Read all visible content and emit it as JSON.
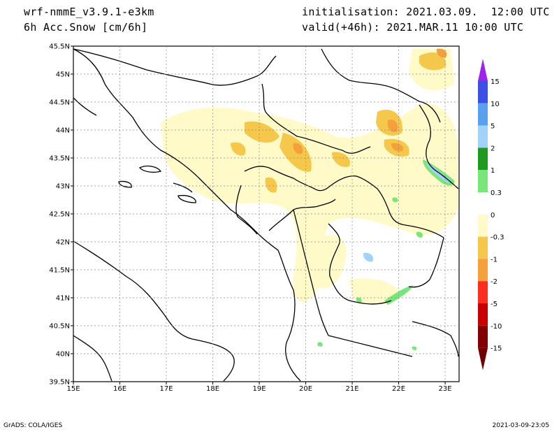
{
  "header": {
    "model": "wrf-nmmE_v3.9.1-e3km",
    "variable": "6h Acc.Snow [cm/6h]",
    "init": "initialisation: 2021.03.09.  12:00 UTC",
    "valid": "valid(+46h): 2021.MAR.11 10:00 UTC"
  },
  "footer": {
    "left": "GrADS: COLA/IGES",
    "right": "2021-03-09-23:05"
  },
  "map": {
    "lon_range": [
      15,
      23.3
    ],
    "lat_range": [
      39.5,
      45.5
    ],
    "x_ticks": [
      "15E",
      "16E",
      "17E",
      "18E",
      "19E",
      "20E",
      "21E",
      "22E",
      "23E"
    ],
    "y_ticks": [
      "39.5N",
      "40N",
      "40.5N",
      "41N",
      "41.5N",
      "42N",
      "42.5N",
      "43N",
      "43.5N",
      "44N",
      "44.5N",
      "45N",
      "45.5N"
    ]
  },
  "legend": {
    "levels": [
      "15",
      "10",
      "5",
      "2",
      "1",
      "0.3",
      "0",
      "-0.3",
      "-1",
      "-2",
      "-5",
      "-10",
      "-15"
    ],
    "colors": [
      "#a020f0",
      "#3c50e6",
      "#5aa0f0",
      "#a0d2fa",
      "#1e9b1e",
      "#78e678",
      "#ffffff",
      "#fffac8",
      "#f5c84b",
      "#f5a03c",
      "#ff2d1e",
      "#c80000",
      "#820000"
    ],
    "top_arrow_color": "#a020f0",
    "bottom_arrow_color": "#700000"
  }
}
